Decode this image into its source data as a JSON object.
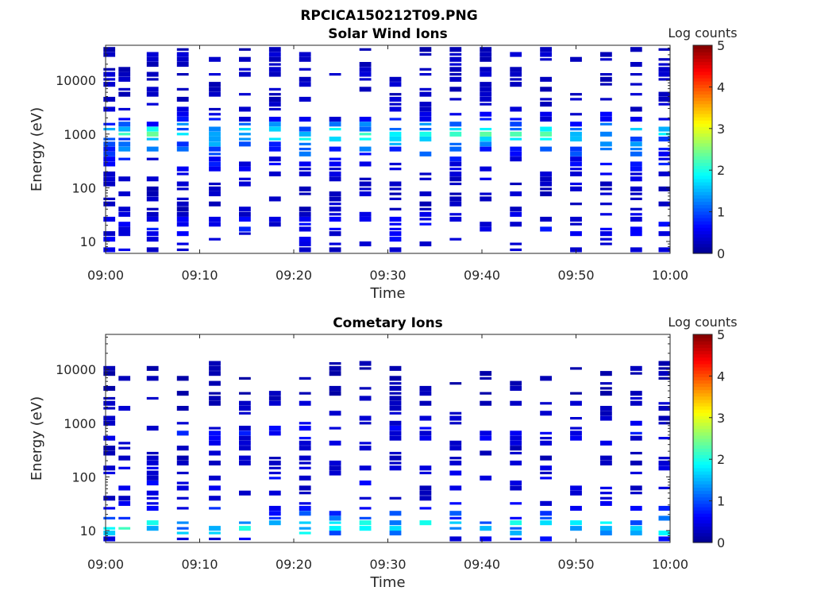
{
  "figure": {
    "title": "RPCICA150212T09.PNG"
  },
  "colormap": [
    "#00008f",
    "#0000ff",
    "#0080ff",
    "#00ffff",
    "#80ff80",
    "#ffff00",
    "#ff8000",
    "#ff0000",
    "#800000"
  ],
  "chart_data": [
    {
      "type": "heatmap",
      "title": "Solar Wind Ions",
      "xlabel": "Time",
      "ylabel": "Energy (eV)",
      "yscale": "log",
      "xlim": [
        0,
        60
      ],
      "ylim": [
        6,
        45000
      ],
      "xticks": [
        0,
        10,
        20,
        30,
        40,
        50,
        60
      ],
      "xticklabels": [
        "09:00",
        "09:10",
        "09:20",
        "09:30",
        "09:40",
        "09:50",
        "10:00"
      ],
      "yticks": [
        10,
        100,
        1000,
        10000
      ],
      "yticklabels": [
        "10",
        "100",
        "1000",
        "10000"
      ],
      "colorbar": {
        "label": "Log counts",
        "range": [
          0,
          5
        ],
        "ticks": [
          0,
          1,
          2,
          3,
          4,
          5
        ],
        "ticklabels": [
          "0",
          "1",
          "2",
          "3",
          "4",
          "5"
        ]
      },
      "time_bins_min": [
        0.4,
        2.0,
        5.0,
        8.2,
        11.6,
        14.8,
        18.0,
        21.2,
        24.4,
        27.6,
        30.8,
        34.0,
        37.2,
        40.4,
        43.6,
        46.8,
        50.0,
        53.2,
        56.4,
        59.4
      ],
      "energy_bins_ev": [
        7,
        9,
        11,
        14,
        17,
        21,
        26,
        32,
        40,
        50,
        62,
        77,
        95,
        118,
        146,
        181,
        224,
        277,
        343,
        425,
        526,
        651,
        806,
        998,
        1236,
        1530,
        1894,
        2345,
        2903,
        3594,
        4449,
        5508,
        6819,
        8441,
        10450,
        12937,
        16016,
        19827,
        24545,
        30386,
        37617
      ],
      "level_by_energy": [
        0.4,
        0.5,
        0.5,
        0.5,
        0.6,
        0.5,
        0.5,
        0.4,
        0.3,
        0.3,
        0.3,
        0.3,
        0.3,
        0.4,
        0.4,
        0.5,
        0.5,
        0.6,
        0.6,
        0.9,
        1.0,
        1.1,
        1.4,
        1.8,
        1.5,
        1.0,
        0.6,
        0.5,
        0.4,
        0.3,
        0.3,
        0.3,
        0.3,
        0.3,
        0.3,
        0.3,
        0.3,
        0.3,
        0.3,
        0.3,
        0.2
      ],
      "fill_probability": 0.42,
      "seed": 7
    },
    {
      "type": "heatmap",
      "title": "Cometary Ions",
      "xlabel": "Time",
      "ylabel": "Energy (eV)",
      "yscale": "log",
      "xlim": [
        0,
        60
      ],
      "ylim": [
        6,
        45000
      ],
      "xticks": [
        0,
        10,
        20,
        30,
        40,
        50,
        60
      ],
      "xticklabels": [
        "09:00",
        "09:10",
        "09:20",
        "09:30",
        "09:40",
        "09:50",
        "10:00"
      ],
      "yticks": [
        10,
        100,
        1000,
        10000
      ],
      "yticklabels": [
        "10",
        "100",
        "1000",
        "10000"
      ],
      "colorbar": {
        "label": "Log counts",
        "range": [
          0,
          5
        ],
        "ticks": [
          0,
          1,
          2,
          3,
          4,
          5
        ],
        "ticklabels": [
          "0",
          "1",
          "2",
          "3",
          "4",
          "5"
        ]
      },
      "time_bins_min": [
        0.4,
        2.0,
        5.0,
        8.2,
        11.6,
        14.8,
        18.0,
        21.2,
        24.4,
        27.6,
        30.8,
        34.0,
        37.2,
        40.4,
        43.6,
        46.8,
        50.0,
        53.2,
        56.4,
        59.4
      ],
      "energy_bins_ev": [
        7,
        9,
        11,
        14,
        17,
        21,
        26,
        32,
        40,
        50,
        62,
        77,
        95,
        118,
        146,
        181,
        224,
        277,
        343,
        425,
        526,
        651,
        806,
        998,
        1236,
        1530,
        1894,
        2345,
        2903,
        3594,
        4449,
        5508,
        6819,
        8441,
        10450,
        12937,
        16016,
        19827,
        24545,
        30386,
        37617
      ],
      "level_by_energy": [
        0.5,
        1.4,
        1.6,
        1.5,
        1.0,
        0.8,
        0.7,
        0.5,
        0.4,
        0.4,
        0.4,
        0.5,
        0.5,
        0.4,
        0.4,
        0.3,
        0.3,
        0.3,
        0.3,
        0.4,
        0.5,
        0.6,
        0.5,
        0.4,
        0.3,
        0.3,
        0.3,
        0.3,
        0.3,
        0.2,
        0.2,
        0.2,
        0.2,
        0.2,
        0.2,
        0.2,
        0.0,
        0.0,
        0.0,
        0.0,
        0.0
      ],
      "fill_probability": 0.36,
      "seed": 23
    }
  ]
}
